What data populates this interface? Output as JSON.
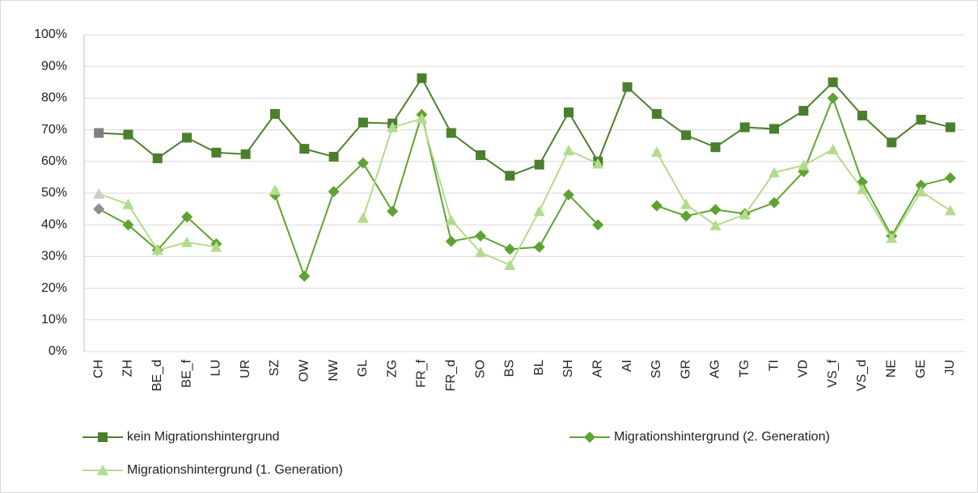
{
  "chart_data": {
    "type": "line",
    "categories": [
      "CH",
      "ZH",
      "BE_d",
      "BE_f",
      "LU",
      "UR",
      "SZ",
      "OW",
      "NW",
      "GL",
      "ZG",
      "FR_f",
      "FR_d",
      "SO",
      "BS",
      "BL",
      "SH",
      "AR",
      "AI",
      "SG",
      "GR",
      "AG",
      "TG",
      "TI",
      "VD",
      "VS_f",
      "VS_d",
      "NE",
      "GE",
      "JU"
    ],
    "series": [
      {
        "name": "kein Migrationshintergrund",
        "color": "#4a7f2c",
        "marker": "square",
        "highlight_color": "#808080",
        "values": [
          69,
          68.5,
          61,
          67.5,
          62.8,
          62.3,
          75,
          64,
          61.5,
          72.3,
          72,
          86.3,
          69,
          62,
          55.5,
          59,
          75.5,
          60,
          83.5,
          75,
          68.3,
          64.5,
          70.8,
          70.3,
          76,
          85,
          74.5,
          66,
          73.2,
          70.8
        ]
      },
      {
        "name": "Migrationshintergrund (2. Generation)",
        "color": "#5ea330",
        "marker": "diamond",
        "highlight_color": "#8c8c8c",
        "values": [
          45,
          40,
          32,
          42.5,
          34,
          null,
          49.5,
          23.8,
          50.5,
          59.5,
          44.3,
          74.8,
          34.8,
          36.5,
          32.3,
          33,
          49.5,
          40,
          null,
          46,
          42.8,
          44.8,
          43.5,
          47,
          56.8,
          80,
          53.5,
          36.5,
          52.5,
          54.8
        ]
      },
      {
        "name": "Migrationshintergrund (1. Generation)",
        "color": "#b3db8c",
        "marker": "triangle",
        "highlight_color": "#cccccc",
        "values": [
          49.8,
          46.5,
          32,
          34.5,
          33,
          null,
          51,
          null,
          null,
          42.2,
          70.8,
          73.5,
          41.5,
          31.3,
          27.3,
          44.3,
          63.5,
          59.3,
          null,
          63,
          46.5,
          39.8,
          43.2,
          56.5,
          58.8,
          63.8,
          51.2,
          35.8,
          50.5,
          44.5
        ]
      }
    ],
    "highlight_index": 0,
    "ylim": [
      0,
      100
    ],
    "yticks": [
      {
        "value": 0,
        "label": "0%"
      },
      {
        "value": 10,
        "label": "10%"
      },
      {
        "value": 20,
        "label": "20%"
      },
      {
        "value": 30,
        "label": "30%"
      },
      {
        "value": 40,
        "label": "40%"
      },
      {
        "value": 50,
        "label": "50%"
      },
      {
        "value": 60,
        "label": "60%"
      },
      {
        "value": 70,
        "label": "70%"
      },
      {
        "value": 80,
        "label": "80%"
      },
      {
        "value": 90,
        "label": "90%"
      },
      {
        "value": 100,
        "label": "100%"
      }
    ],
    "grid": true,
    "legend": "bottom"
  }
}
